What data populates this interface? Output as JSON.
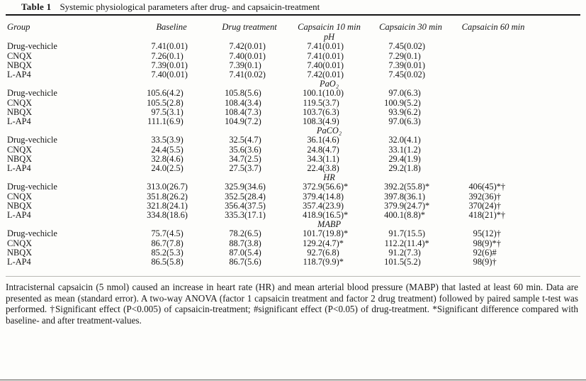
{
  "doc": {
    "table_label": "Table 1",
    "table_title": "Systemic physiological parameters after drug- and capsaicin-treatment"
  },
  "columns": {
    "group": "Group",
    "baseline": "Baseline",
    "drug": "Drug treatment",
    "cap10": "Capsaicin 10 min",
    "cap30": "Capsaicin 30 min",
    "cap60": "Capsaicin 60 min"
  },
  "sections": [
    {
      "name": "pH",
      "rows": [
        {
          "group": "Drug-vechicle",
          "cells": [
            [
              "7.41",
              "(0.01)"
            ],
            [
              "7.42",
              "(0.01)"
            ],
            [
              "7.41",
              "(0.01)"
            ],
            [
              "7.45",
              "(0.02)"
            ],
            [
              "",
              ""
            ]
          ]
        },
        {
          "group": "CNQX",
          "cells": [
            [
              "7.26",
              "(0.1)"
            ],
            [
              "7.40",
              "(0.01)"
            ],
            [
              "7.41",
              "(0.01)"
            ],
            [
              "7.29",
              "(0.1)"
            ],
            [
              "",
              ""
            ]
          ]
        },
        {
          "group": "NBQX",
          "cells": [
            [
              "7.39",
              "(0.01)"
            ],
            [
              "7.39",
              "(0.1)"
            ],
            [
              "7.40",
              "(0.01)"
            ],
            [
              "7.39",
              "(0.01)"
            ],
            [
              "",
              ""
            ]
          ]
        },
        {
          "group": "L-AP4",
          "cells": [
            [
              "7.40",
              "(0.01)"
            ],
            [
              "7.41",
              "(0.02)"
            ],
            [
              "7.42",
              "(0.01)"
            ],
            [
              "7.45",
              "(0.02)"
            ],
            [
              "",
              ""
            ]
          ]
        }
      ]
    },
    {
      "name": "PaO₂",
      "rows": [
        {
          "group": "Drug-vechicle",
          "cells": [
            [
              "105.6",
              "(4.2)"
            ],
            [
              "105.8",
              "(5.6)"
            ],
            [
              "100.1",
              "(10.0)"
            ],
            [
              "97.0",
              "(6.3)"
            ],
            [
              "",
              ""
            ]
          ]
        },
        {
          "group": "CNQX",
          "cells": [
            [
              "105.5",
              "(2.8)"
            ],
            [
              "108.4",
              "(3.4)"
            ],
            [
              "119.5",
              "(3.7)"
            ],
            [
              "100.9",
              "(5.2)"
            ],
            [
              "",
              ""
            ]
          ]
        },
        {
          "group": "NBQX",
          "cells": [
            [
              "97.5",
              "(3.1)"
            ],
            [
              "108.4",
              "(7.3)"
            ],
            [
              "103.7",
              "(6.3)"
            ],
            [
              "93.9",
              "(6.2)"
            ],
            [
              "",
              ""
            ]
          ]
        },
        {
          "group": "L-AP4",
          "cells": [
            [
              "111.1",
              "(6.9)"
            ],
            [
              "104.9",
              "(7.2)"
            ],
            [
              "108.3",
              "(4.9)"
            ],
            [
              "97.0",
              "(6.3)"
            ],
            [
              "",
              ""
            ]
          ]
        }
      ]
    },
    {
      "name": "PaCO₂",
      "rows": [
        {
          "group": "Drug-vechicle",
          "cells": [
            [
              "33.5",
              "(3.9)"
            ],
            [
              "32.5",
              "(4.7)"
            ],
            [
              "36.1",
              "(4.6)"
            ],
            [
              "32.0",
              "(4.1)"
            ],
            [
              "",
              ""
            ]
          ]
        },
        {
          "group": "CNQX",
          "cells": [
            [
              "24.4",
              "(5.5)"
            ],
            [
              "35.6",
              "(3.6)"
            ],
            [
              "24.8",
              "(4.7)"
            ],
            [
              "33.1",
              "(1.2)"
            ],
            [
              "",
              ""
            ]
          ]
        },
        {
          "group": "NBQX",
          "cells": [
            [
              "32.8",
              "(4.6)"
            ],
            [
              "34.7",
              "(2.5)"
            ],
            [
              "34.3",
              "(1.1)"
            ],
            [
              "29.4",
              "(1.9)"
            ],
            [
              "",
              ""
            ]
          ]
        },
        {
          "group": "L-AP4",
          "cells": [
            [
              "24.0",
              "(2.5)"
            ],
            [
              "27.5",
              "(3.7)"
            ],
            [
              "22.4",
              "(3.8)"
            ],
            [
              "29.2",
              "(1.8)"
            ],
            [
              "",
              ""
            ]
          ]
        }
      ]
    },
    {
      "name": "HR",
      "rows": [
        {
          "group": "Drug-vechicle",
          "cells": [
            [
              "313.0",
              "(26.7)"
            ],
            [
              "325.9",
              "(34.6)"
            ],
            [
              "372.9",
              "(56.6)*"
            ],
            [
              "392.2",
              "(55.8)*"
            ],
            [
              "406",
              "(45)*†"
            ]
          ]
        },
        {
          "group": "CNQX",
          "cells": [
            [
              "351.8",
              "(26.2)"
            ],
            [
              "352.5",
              "(28.4)"
            ],
            [
              "379.4",
              "(14.8)"
            ],
            [
              "397.8",
              "(36.1)"
            ],
            [
              "392",
              "(36)†"
            ]
          ]
        },
        {
          "group": "NBQX",
          "cells": [
            [
              "321.8",
              "(24.1)"
            ],
            [
              "356.4",
              "(37.5)"
            ],
            [
              "357.4",
              "(23.9)"
            ],
            [
              "379.9",
              "(24.7)*"
            ],
            [
              "370",
              "(24)†"
            ]
          ]
        },
        {
          "group": "L-AP4",
          "cells": [
            [
              "334.8",
              "(18.6)"
            ],
            [
              "335.3",
              "(17.1)"
            ],
            [
              "418.9",
              "(16.5)*"
            ],
            [
              "400.1",
              "(8.8)*"
            ],
            [
              "418",
              "(21)*†"
            ]
          ]
        }
      ]
    },
    {
      "name": "MABP",
      "rows": [
        {
          "group": "Drug-vechicle",
          "cells": [
            [
              "75.7",
              "(4.5)"
            ],
            [
              "78.2",
              "(6.5)"
            ],
            [
              "101.7",
              "(19.8)*"
            ],
            [
              "91.7",
              "(15.5)"
            ],
            [
              "95",
              "(12)†"
            ]
          ]
        },
        {
          "group": "CNQX",
          "cells": [
            [
              "86.7",
              "(7.8)"
            ],
            [
              "88.7",
              "(3.8)"
            ],
            [
              "129.2",
              "(4.7)*"
            ],
            [
              "112.2",
              "(11.4)*"
            ],
            [
              "98",
              "(9)*†"
            ]
          ]
        },
        {
          "group": "NBQX",
          "cells": [
            [
              "85.2",
              "(5.3)"
            ],
            [
              "87.0",
              "(5.4)"
            ],
            [
              "92.7",
              "(6.8)"
            ],
            [
              "91.2",
              "(7.3)"
            ],
            [
              "92",
              "(6)#"
            ]
          ]
        },
        {
          "group": "L-AP4",
          "cells": [
            [
              "86.5",
              "(5.8)"
            ],
            [
              "86.7",
              "(5.6)"
            ],
            [
              "118.7",
              "(9.9)*"
            ],
            [
              "101.5",
              "(5.2)"
            ],
            [
              "98",
              "(9)†"
            ]
          ]
        }
      ]
    }
  ],
  "footnote": "Intracisternal capsaicin (5 nmol) caused an increase in heart rate (HR) and mean arterial blood pressure (MABP) that lasted at least 60 min. Data are presented as mean (standard error). A two-way ANOVA (factor 1 capsaicin treatment and factor 2 drug treatment) followed by paired sample t-test was performed. †Significant effect (P<0.005) of capsaicin-treatment; #significant effect (P<0.05) of drug-treatment. *Significant difference compared with baseline- and after treatment-values."
}
